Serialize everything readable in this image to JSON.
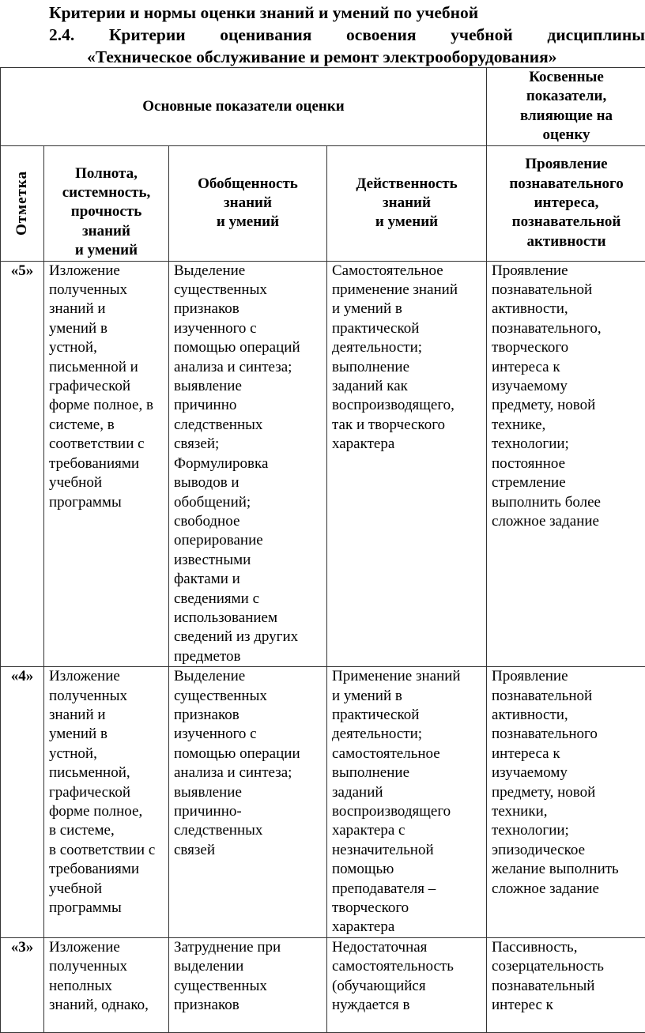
{
  "title": {
    "line1": "Критерии и нормы оценки знаний и умений по учебной",
    "line2_words": [
      "2.4.",
      "Критерии",
      "оценивания",
      "освоения",
      "учебной",
      "дисциплины"
    ],
    "line3": "«Техническое обслуживание и ремонт электрооборудования»"
  },
  "table": {
    "header_main": "Основные показатели оценки",
    "header_indirect": "Косвенные\nпоказатели,\nвлияющие на\nоценку",
    "col_mark": "Отметка",
    "col_completeness": "Полнота,\nсистемность,\nпрочность\nзнаний\nи умений",
    "col_generalization": "Обобщенность\nзнаний\nи умений",
    "col_effectiveness": "Действенность\nзнаний\nи умений",
    "col_interest": "Проявление\nпознавательного\nинтереса,\nпознавательной\nактивности",
    "rows": [
      {
        "mark": "«5»",
        "completeness": "Изложение\nполученных\nзнаний и\nумений в\nустной,\nписьменной и\nграфической\nформе полное, в\nсистеме, в\nсоответствии с\nтребованиями\nучебной\nпрограммы",
        "generalization": "Выделение\nсущественных\nпризнаков\nизученного с\nпомощью операций\nанализа и синтеза;\nвыявление\nпричинно\nследственных\nсвязей;\nФормулировка\nвыводов и\nобобщений;\nсвободное\nоперирование\nизвестными\nфактами и\nсведениями с\nиспользованием\nсведений из других\nпредметов",
        "effectiveness": "Самостоятельное\nприменение знаний\nи умений в\nпрактической\nдеятельности;\nвыполнение\nзаданий как\nвоспроизводящего,\nтак и творческого\nхарактера",
        "interest": "Проявление\nпознавательной\nактивности,\nпознавательного,\nтворческого\nинтереса к\nизучаемому\nпредмету, новой\nтехнике,\nтехнологии;\nпостоянное\nстремление\nвыполнить более\nсложное задание"
      },
      {
        "mark": "«4»",
        "completeness": "Изложение\nполученных\nзнаний и\nумений в\nустной,\nписьменной,\nграфической\nформе полное,\nв системе,\nв соответствии с\nтребованиями\nучебной\nпрограммы",
        "generalization": "Выделение\nсущественных\nпризнаков\nизученного с\nпомощью операции\nанализа и синтеза;\nвыявление\nпричинно-\nследственных\nсвязей",
        "effectiveness": "Применение знаний\nи умений в\nпрактической\nдеятельности;\nсамостоятельное\nвыполнение\nзаданий\nвоспроизводящего\nхарактера с\nнезначительной\nпомощью\nпреподавателя –\nтворческого\nхарактера",
        "interest": "Проявление\nпознавательной\nактивности,\nпознавательного\nинтереса к\nизучаемому\nпредмету, новой\nтехники,\nтехнологии;\nэпизодическое\nжелание выполнить\nсложное задание"
      },
      {
        "mark": "«3»",
        "completeness": "Изложение\nполученных\nнеполных\nзнаний, однако,",
        "generalization": "Затруднение при\nвыделении\nсущественных\nпризнаков",
        "effectiveness": "Недостаточная\nсамостоятельность\n(обучающийся\nнуждается в",
        "interest": "Пассивность,\nсозерцательность\nпознавательный\nинтерес к"
      }
    ]
  }
}
